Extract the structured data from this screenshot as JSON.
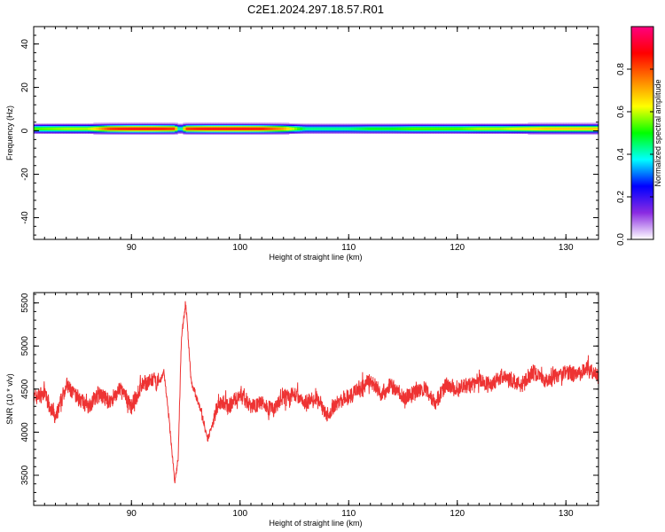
{
  "window": {
    "title": "C2E1.2024.297.18.57.R01"
  },
  "chart_data": [
    {
      "type": "heatmap",
      "title": "C2E1.2024.297.18.57.R01",
      "xlabel": "Height of straight line (km)",
      "ylabel": "Frequency (Hz)",
      "xlim": [
        81,
        133
      ],
      "ylim": [
        -50,
        48
      ],
      "x_ticks": [
        90,
        100,
        110,
        120,
        130
      ],
      "y_ticks": [
        -40,
        -20,
        0,
        20,
        40
      ],
      "colorbar": {
        "label": "Normalized spectral amplitude",
        "range": [
          0,
          1
        ],
        "ticks": [
          "0.0",
          "0.2",
          "0.4",
          "0.6",
          "0.8"
        ],
        "colormap": [
          "#ffffff",
          "#8a2be2",
          "#0000ff",
          "#00ffff",
          "#00ff00",
          "#ffff00",
          "#ff8000",
          "#ff0000",
          "#ff0080"
        ]
      },
      "band": {
        "center_hz": 1,
        "halfwidth_hz": 3,
        "x": [
          81,
          84,
          86,
          88,
          90,
          92,
          94,
          94.5,
          95,
          97,
          100,
          102,
          104,
          106,
          108,
          110,
          112,
          114,
          116,
          118,
          120,
          122,
          124,
          126,
          128,
          130,
          133
        ],
        "amplitude": [
          0.55,
          0.6,
          0.6,
          0.85,
          0.9,
          0.9,
          0.85,
          0.3,
          0.85,
          0.9,
          0.9,
          0.88,
          0.75,
          0.45,
          0.45,
          0.45,
          0.5,
          0.5,
          0.55,
          0.55,
          0.55,
          0.6,
          0.6,
          0.65,
          0.7,
          0.7,
          0.7
        ]
      }
    },
    {
      "type": "line",
      "xlabel": "Height of straight line (km)",
      "ylabel": "SNR (10 * v/v)",
      "xlim": [
        81,
        133
      ],
      "ylim": [
        3150,
        5620
      ],
      "x_ticks": [
        90,
        100,
        110,
        120,
        130
      ],
      "y_ticks": [
        3500,
        4000,
        4500,
        5000,
        5500
      ],
      "color": "#ee3333",
      "series": [
        {
          "x": [
            81,
            82,
            83,
            84,
            85,
            86,
            87,
            88,
            89,
            90,
            91,
            92,
            92.5,
            93,
            93.5,
            94,
            94.3,
            94.6,
            95,
            95.5,
            96,
            96.5,
            97,
            98,
            99,
            100,
            101,
            102,
            103,
            104,
            105,
            106,
            107,
            108,
            109,
            110,
            111,
            112,
            113,
            114,
            115,
            116,
            117,
            118,
            119,
            120,
            121,
            122,
            123,
            124,
            125,
            126,
            127,
            128,
            129,
            130,
            131,
            132,
            133
          ],
          "y": [
            4400,
            4450,
            4150,
            4550,
            4400,
            4300,
            4450,
            4350,
            4500,
            4300,
            4550,
            4600,
            4550,
            4700,
            4100,
            3400,
            3700,
            5100,
            5500,
            4600,
            4400,
            4200,
            3900,
            4350,
            4300,
            4450,
            4300,
            4350,
            4250,
            4400,
            4450,
            4350,
            4400,
            4200,
            4350,
            4400,
            4500,
            4600,
            4450,
            4550,
            4400,
            4450,
            4500,
            4350,
            4550,
            4500,
            4550,
            4600,
            4550,
            4650,
            4600,
            4550,
            4700,
            4600,
            4650,
            4700,
            4650,
            4750,
            4650
          ]
        }
      ]
    }
  ]
}
